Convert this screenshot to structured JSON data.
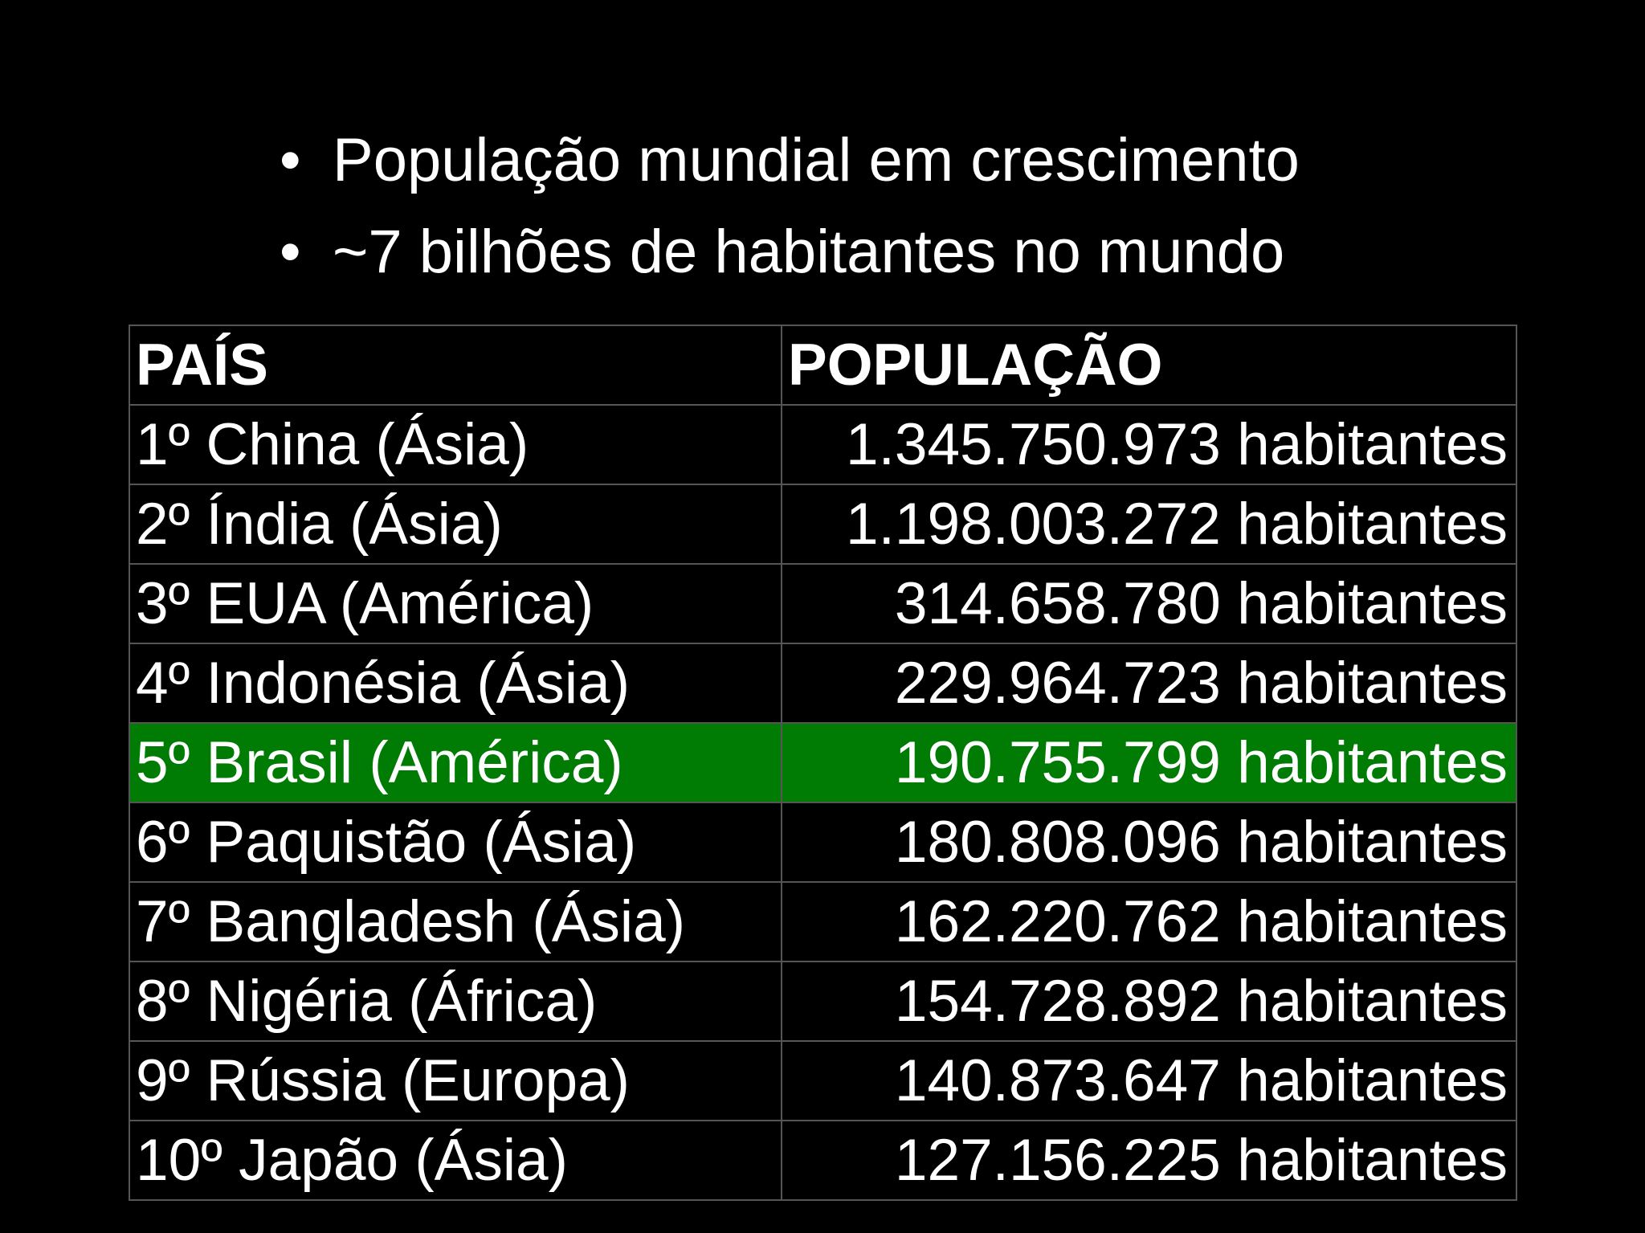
{
  "bullets": [
    "População mundial em crescimento",
    "~7 bilhões de habitantes no mundo"
  ],
  "table": {
    "headers": [
      "PAÍS",
      "POPULAÇÃO"
    ],
    "rows": [
      {
        "country": "1º China (Ásia)",
        "population": "1.345.750.973 habitantes"
      },
      {
        "country": "2º Índia (Ásia)",
        "population": "1.198.003.272 habitantes"
      },
      {
        "country": "3º EUA (América)",
        "population": "314.658.780 habitantes"
      },
      {
        "country": "4º Indonésia (Ásia)",
        "population": "229.964.723 habitantes"
      },
      {
        "country": "5º Brasil (América)",
        "population": "190.755.799 habitantes"
      },
      {
        "country": "6º Paquistão (Ásia)",
        "population": "180.808.096 habitantes"
      },
      {
        "country": "7º Bangladesh (Ásia)",
        "population": "162.220.762 habitantes"
      },
      {
        "country": "8º Nigéria (África)",
        "population": "154.728.892 habitantes"
      },
      {
        "country": "9º Rússia (Europa)",
        "population": "140.873.647 habitantes"
      },
      {
        "country": "10º Japão (Ásia)",
        "population": "127.156.225 habitantes"
      }
    ],
    "highlighted_row": 4,
    "highlight_color": "#007c05"
  },
  "colors": {
    "background": "#000000",
    "text": "#ffffff",
    "grid": "#555555"
  }
}
